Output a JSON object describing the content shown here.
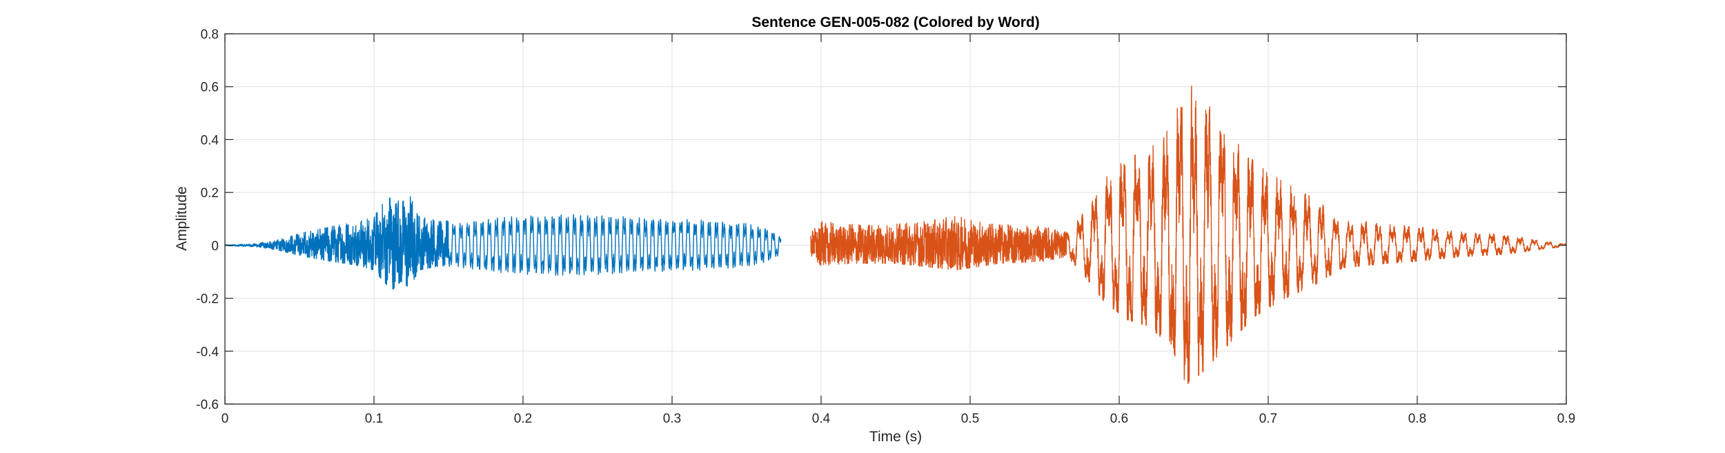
{
  "chart_data": {
    "type": "line",
    "title": "Sentence GEN-005-082 (Colored by Word)",
    "xlabel": "Time (s)",
    "ylabel": "Amplitude",
    "xlim": [
      0,
      0.9
    ],
    "ylim": [
      -0.6,
      0.8
    ],
    "xticks": [
      "0",
      "0.1",
      "0.2",
      "0.3",
      "0.4",
      "0.5",
      "0.6",
      "0.7",
      "0.8",
      "0.9"
    ],
    "yticks": [
      "-0.6",
      "-0.4",
      "-0.2",
      "0",
      "0.2",
      "0.4",
      "0.6",
      "0.8"
    ],
    "grid": true,
    "legend": "none",
    "series": [
      {
        "color": "#0072BD",
        "x_range": [
          0.0,
          0.373
        ],
        "envelope": [
          [
            0.0,
            0.002
          ],
          [
            0.02,
            0.006
          ],
          [
            0.035,
            0.02
          ],
          [
            0.05,
            0.045
          ],
          [
            0.07,
            0.07
          ],
          [
            0.09,
            0.09
          ],
          [
            0.1,
            0.11
          ],
          [
            0.105,
            0.15
          ],
          [
            0.112,
            0.2
          ],
          [
            0.118,
            0.16
          ],
          [
            0.124,
            0.19
          ],
          [
            0.13,
            0.11
          ],
          [
            0.145,
            0.09
          ],
          [
            0.16,
            0.1
          ],
          [
            0.19,
            0.125
          ],
          [
            0.22,
            0.135
          ],
          [
            0.25,
            0.13
          ],
          [
            0.28,
            0.12
          ],
          [
            0.32,
            0.11
          ],
          [
            0.35,
            0.095
          ],
          [
            0.365,
            0.07
          ],
          [
            0.373,
            0.04
          ]
        ]
      },
      {
        "color": "#D95319",
        "x_range": [
          0.393,
          0.9
        ],
        "envelope": [
          [
            0.393,
            0.05
          ],
          [
            0.4,
            0.09
          ],
          [
            0.42,
            0.08
          ],
          [
            0.45,
            0.08
          ],
          [
            0.49,
            0.11
          ],
          [
            0.52,
            0.08
          ],
          [
            0.55,
            0.07
          ],
          [
            0.565,
            0.05
          ],
          [
            0.575,
            0.12
          ],
          [
            0.59,
            0.25
          ],
          [
            0.605,
            0.33
          ],
          [
            0.62,
            0.36
          ],
          [
            0.635,
            0.45
          ],
          [
            0.645,
            0.62
          ],
          [
            0.655,
            0.57
          ],
          [
            0.665,
            0.5
          ],
          [
            0.69,
            0.32
          ],
          [
            0.71,
            0.24
          ],
          [
            0.73,
            0.18
          ],
          [
            0.75,
            0.1
          ],
          [
            0.78,
            0.08
          ],
          [
            0.8,
            0.07
          ],
          [
            0.83,
            0.05
          ],
          [
            0.86,
            0.04
          ],
          [
            0.88,
            0.02
          ],
          [
            0.9,
            0.005
          ]
        ]
      }
    ]
  }
}
